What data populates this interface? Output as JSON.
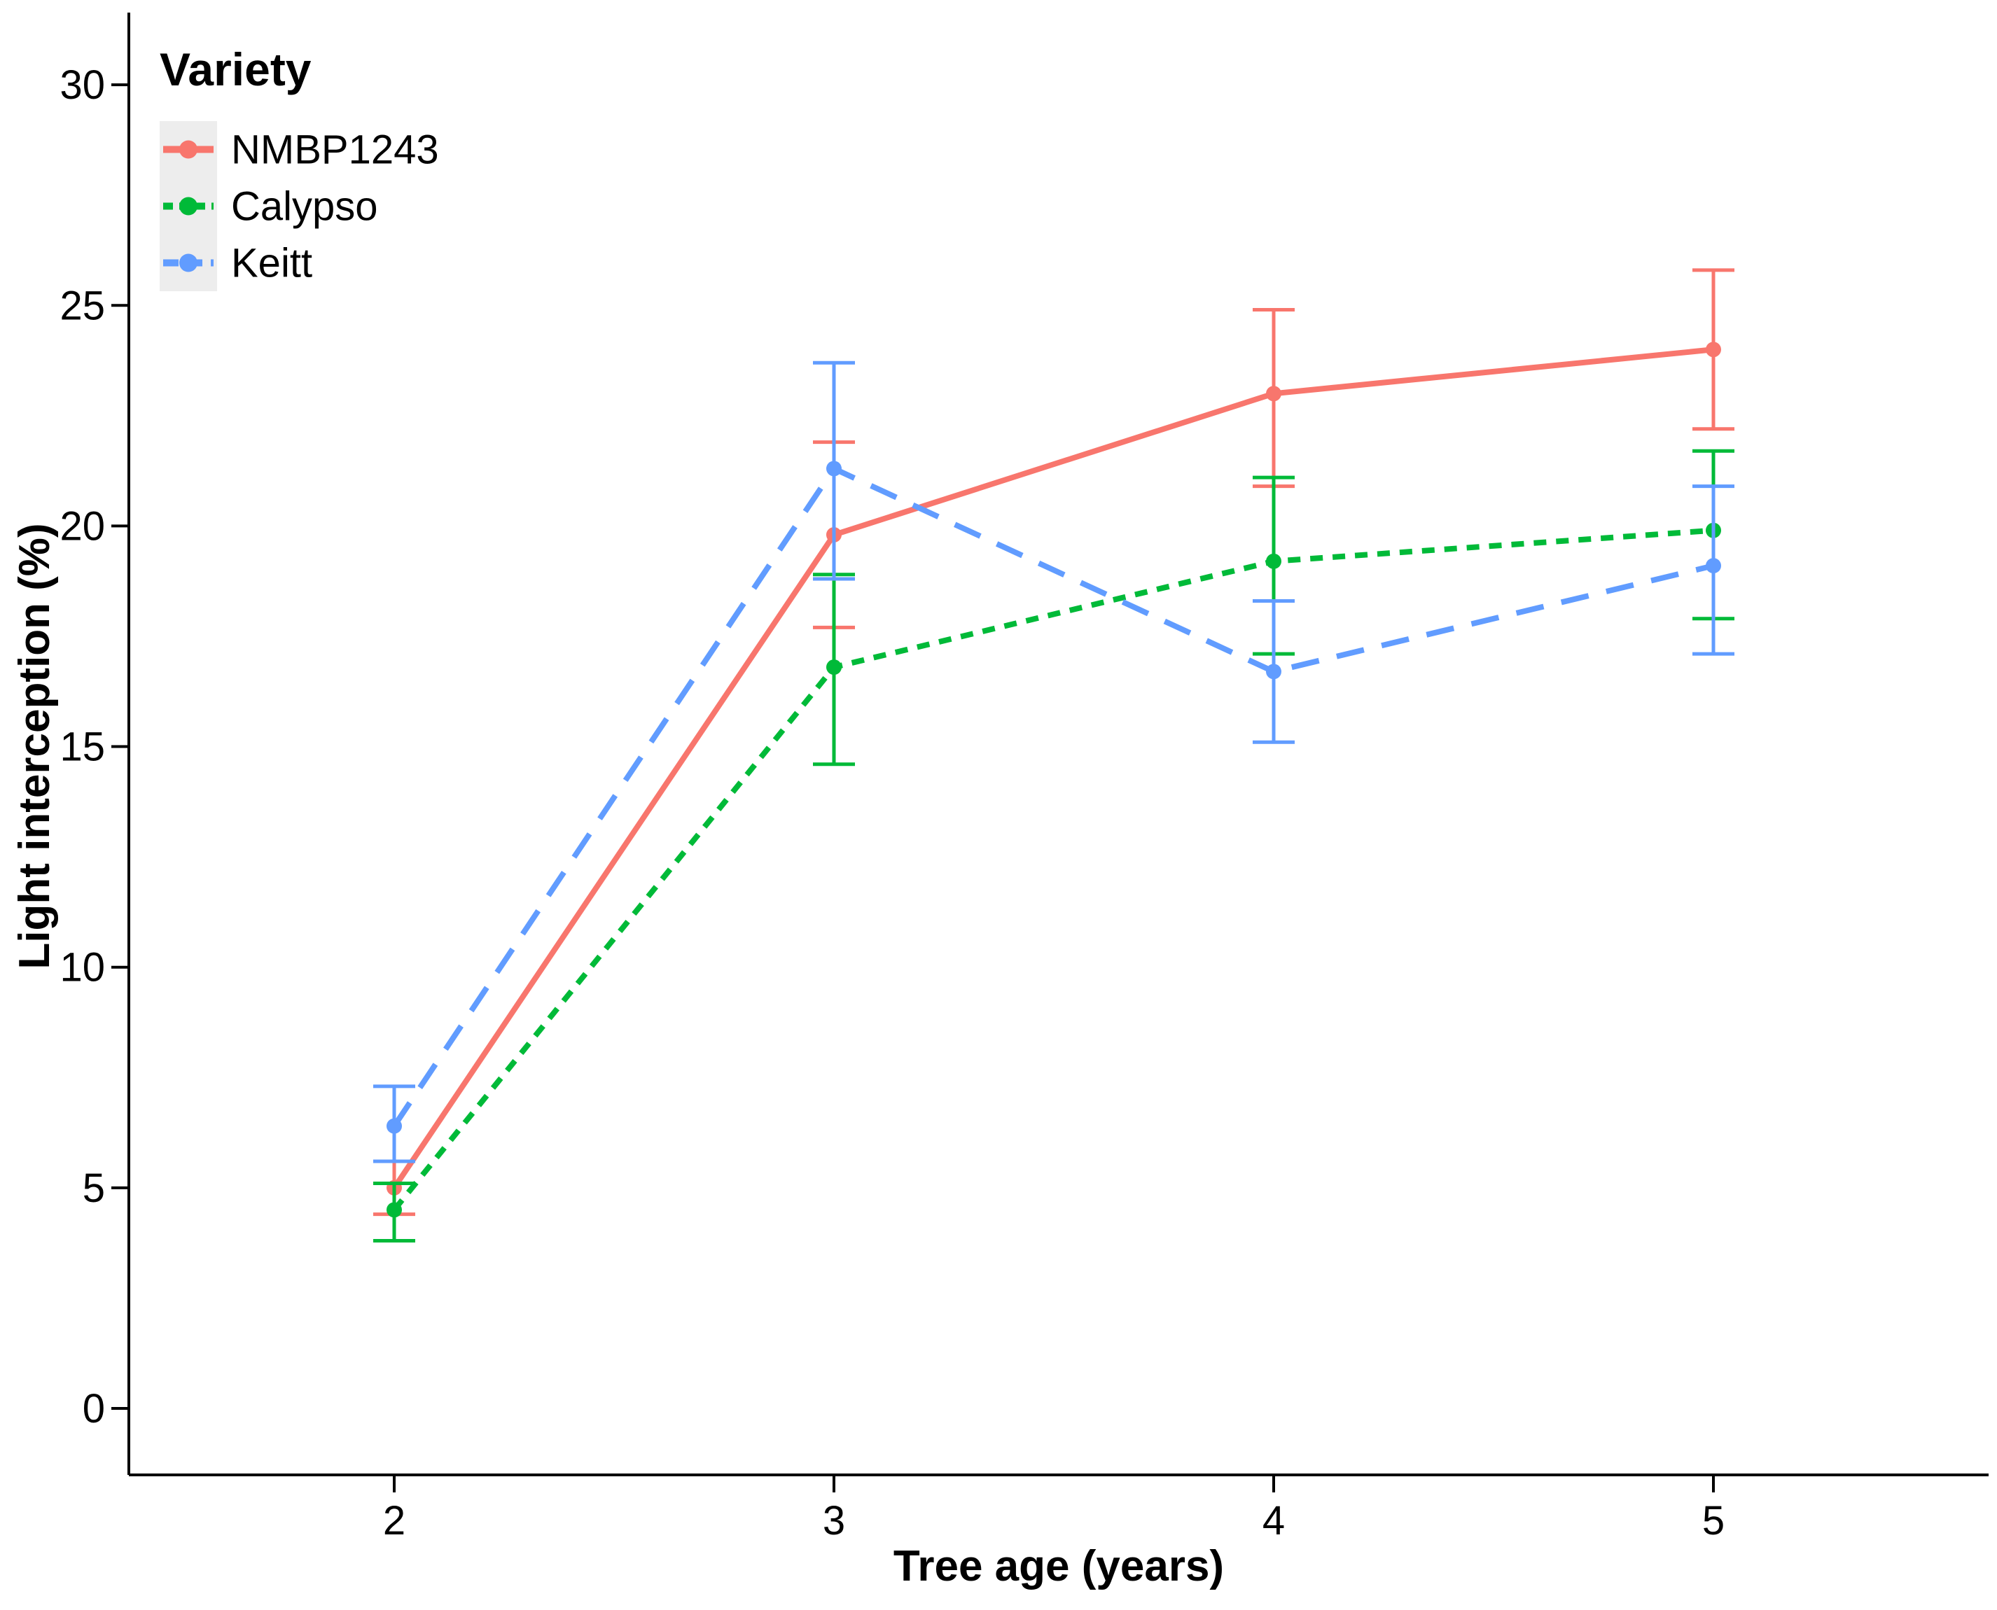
{
  "chart_data": {
    "type": "line",
    "title": "",
    "legend_title": "Variety",
    "xlabel": "Tree age (years)",
    "ylabel": "Light interception (%)",
    "x_ticks": [
      2,
      3,
      4,
      5
    ],
    "y_ticks": [
      0,
      5,
      10,
      15,
      20,
      25,
      30
    ],
    "xlim": [
      1.4,
      5.6
    ],
    "ylim": [
      -1.5,
      31.5
    ],
    "grid": "off",
    "legend_position": "inside-top-left",
    "legend_key_fill": "#EDEDED",
    "error_bars": true,
    "series": [
      {
        "name": "NMBP1243",
        "color": "#F8766D",
        "linetype": "solid",
        "x": [
          2,
          3,
          4,
          5
        ],
        "y": [
          5.0,
          19.8,
          23.0,
          24.0
        ],
        "err_low": [
          4.4,
          17.7,
          20.9,
          22.2
        ],
        "err_high": [
          5.6,
          21.9,
          24.9,
          25.8
        ]
      },
      {
        "name": "Calypso",
        "color": "#00BA38",
        "linetype": "short-dash",
        "x": [
          2,
          3,
          4,
          5
        ],
        "y": [
          4.5,
          16.8,
          19.2,
          19.9
        ],
        "err_low": [
          3.8,
          14.6,
          17.1,
          17.9
        ],
        "err_high": [
          5.1,
          18.9,
          21.1,
          21.7
        ]
      },
      {
        "name": "Keitt",
        "color": "#619CFF",
        "linetype": "long-dash",
        "x": [
          2,
          3,
          4,
          5
        ],
        "y": [
          6.4,
          21.3,
          16.7,
          19.1
        ],
        "err_low": [
          5.6,
          18.8,
          15.1,
          17.1
        ],
        "err_high": [
          7.3,
          23.7,
          18.3,
          20.9
        ]
      }
    ]
  }
}
